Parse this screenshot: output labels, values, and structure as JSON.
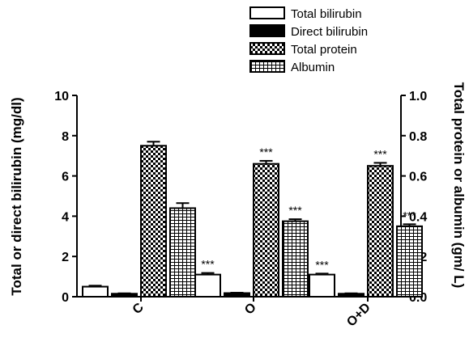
{
  "chart_data": {
    "type": "bar",
    "categories": [
      "C",
      "O",
      "O+D"
    ],
    "series": [
      {
        "name": "Total bilirubin",
        "axis": "left",
        "pattern": "white",
        "values": [
          0.5,
          1.1,
          1.1
        ],
        "errors": [
          0.05,
          0.08,
          0.05
        ],
        "annotations": [
          "",
          "***",
          "***"
        ]
      },
      {
        "name": "Direct bilirubin",
        "axis": "left",
        "pattern": "black",
        "values": [
          0.15,
          0.18,
          0.15
        ],
        "errors": [
          0.02,
          0.02,
          0.02
        ],
        "annotations": [
          "",
          "",
          ""
        ]
      },
      {
        "name": "Total protein",
        "axis": "right",
        "pattern": "checker",
        "values": [
          0.75,
          0.66,
          0.65
        ],
        "errors": [
          0.02,
          0.015,
          0.015
        ],
        "annotations": [
          "",
          "***",
          "***"
        ]
      },
      {
        "name": "Albumin",
        "axis": "right",
        "pattern": "grid",
        "values": [
          0.44,
          0.375,
          0.35
        ],
        "errors": [
          0.025,
          0.01,
          0.01
        ],
        "annotations": [
          "",
          "***",
          "***"
        ]
      }
    ],
    "ylabel": "Total or direct bilirubin (mg/dl)",
    "ylim": [
      0,
      10
    ],
    "yticks": [
      "0",
      "2",
      "4",
      "6",
      "8",
      "10"
    ],
    "ylabel_right": "Total protein or albumin (gm/ L)",
    "ylim_right": [
      0,
      1.0
    ],
    "yticks_right": [
      "0.0",
      "0.2",
      "0.4",
      "0.6",
      "0.8",
      "1.0"
    ],
    "legend_position": "top-right",
    "grid": false
  }
}
